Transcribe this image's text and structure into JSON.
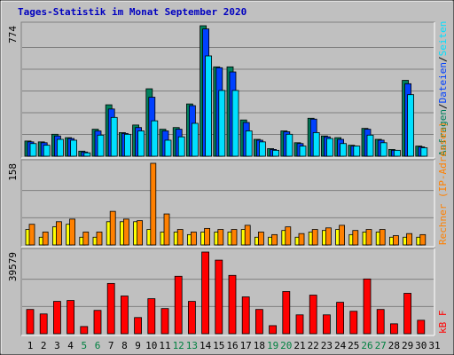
{
  "title": "Tages-Statistik im Monat September 2020",
  "categories": [
    "1",
    "2",
    "3",
    "4",
    "5",
    "6",
    "7",
    "8",
    "9",
    "10",
    "11",
    "12",
    "13",
    "14",
    "15",
    "16",
    "17",
    "18",
    "19",
    "20",
    "21",
    "22",
    "23",
    "24",
    "25",
    "26",
    "27",
    "28",
    "29",
    "30",
    "31"
  ],
  "category_colors": [
    "#000000",
    "#000000",
    "#000000",
    "#000000",
    "#008040",
    "#008040",
    "#000000",
    "#000000",
    "#000000",
    "#000000",
    "#000000",
    "#008040",
    "#008040",
    "#000000",
    "#000000",
    "#000000",
    "#000000",
    "#000000",
    "#008040",
    "#008040",
    "#000000",
    "#000000",
    "#000000",
    "#000000",
    "#000000",
    "#008040",
    "#008040",
    "#000000",
    "#000000",
    "#000000",
    "#000000"
  ],
  "legend_separator": "/",
  "chart_data": [
    {
      "type": "bar",
      "ylim": [
        0,
        774
      ],
      "yticks": [
        774
      ],
      "series": [
        {
          "name": "Anfragen",
          "color": "#00805C",
          "values": [
            90,
            85,
            130,
            110,
            30,
            160,
            305,
            140,
            185,
            400,
            160,
            170,
            310,
            774,
            530,
            530,
            215,
            100,
            45,
            150,
            80,
            225,
            120,
            110,
            65,
            165,
            100,
            40,
            450,
            60,
            null
          ]
        },
        {
          "name": "Dateien",
          "color": "#0040FF",
          "values": [
            85,
            80,
            120,
            105,
            25,
            150,
            280,
            135,
            170,
            350,
            150,
            160,
            300,
            755,
            525,
            500,
            200,
            95,
            40,
            145,
            75,
            220,
            115,
            100,
            60,
            160,
            95,
            35,
            430,
            55,
            null
          ]
        },
        {
          "name": "Seiten",
          "color": "#00E0FF",
          "values": [
            75,
            65,
            100,
            95,
            20,
            125,
            230,
            130,
            150,
            210,
            95,
            115,
            195,
            595,
            390,
            390,
            150,
            85,
            35,
            130,
            60,
            140,
            105,
            75,
            60,
            125,
            80,
            35,
            365,
            50,
            null
          ]
        }
      ]
    },
    {
      "type": "bar",
      "ylim": [
        0,
        158
      ],
      "yticks": [
        158
      ],
      "series": [
        {
          "color": "#FFFF00",
          "values": [
            30,
            15,
            35,
            40,
            15,
            15,
            45,
            45,
            45,
            30,
            25,
            25,
            20,
            25,
            25,
            25,
            30,
            15,
            15,
            28,
            15,
            25,
            28,
            30,
            20,
            25,
            25,
            15,
            15,
            15,
            null
          ]
        },
        {
          "name": "Rechner (IP-Adressen)",
          "color": "#FF8000",
          "values": [
            40,
            25,
            45,
            50,
            25,
            25,
            65,
            50,
            47,
            158,
            60,
            30,
            25,
            32,
            30,
            30,
            38,
            25,
            20,
            35,
            22,
            30,
            33,
            38,
            28,
            30,
            30,
            18,
            22,
            20,
            null
          ]
        }
      ]
    },
    {
      "type": "bar",
      "ylim": [
        0,
        39579
      ],
      "yticks": [
        39579
      ],
      "series": [
        {
          "name": "kB F",
          "color": "#FF0000",
          "values": [
            11750,
            9570,
            15660,
            16100,
            3480,
            11300,
            24360,
            18270,
            7830,
            16970,
            12180,
            27840,
            15660,
            39579,
            35670,
            28270,
            17840,
            11750,
            3900,
            20450,
            9130,
            18700,
            9130,
            15230,
            10870,
            26540,
            11750,
            4790,
            19580,
            6520,
            null
          ]
        }
      ]
    }
  ]
}
